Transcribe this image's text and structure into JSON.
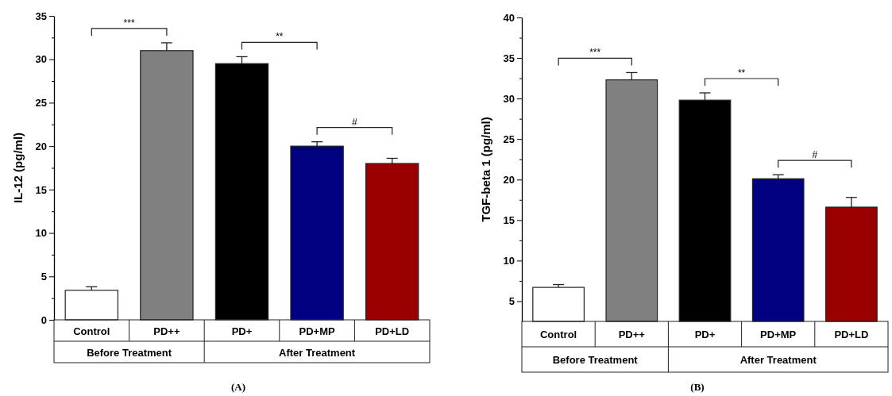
{
  "chart_data": [
    {
      "type": "bar",
      "title": "(A)",
      "ylabel": "IL-12 (pg/ml)",
      "categories": [
        "Control",
        "PD++",
        "PD+",
        "PD+MP",
        "PD+LD"
      ],
      "values": [
        3.4,
        31.0,
        29.5,
        20.0,
        18.0
      ],
      "errors": [
        0.4,
        0.9,
        0.8,
        0.5,
        0.6
      ],
      "colors": [
        "#ffffff",
        "#808080",
        "#000000",
        "#000080",
        "#990000"
      ],
      "ylim": [
        0,
        35
      ],
      "yticks": [
        0,
        {
          "value": 2.5,
          "label": null
        },
        5,
        {
          "value": 7.5,
          "label": null
        },
        10,
        {
          "value": 12.5,
          "label": null
        },
        15,
        {
          "value": 17.5,
          "label": null
        },
        20,
        {
          "value": 22.5,
          "label": null
        },
        25,
        {
          "value": 27.5,
          "label": null
        },
        30,
        {
          "value": 32.5,
          "label": null
        },
        35
      ],
      "annotations": [
        "***",
        "**",
        "#",
        "Before Treatment",
        "After Treatment"
      ]
    },
    {
      "type": "bar",
      "title": "(B)",
      "ylabel": "TGF-beta 1 (pg/ml)",
      "categories": [
        "Control",
        "PD++",
        "PD+",
        "PD+MP",
        "PD+LD"
      ],
      "values": [
        6.7,
        32.3,
        29.8,
        20.1,
        16.6
      ],
      "errors": [
        0.35,
        0.9,
        0.9,
        0.5,
        1.2
      ],
      "colors": [
        "#ffffff",
        "#808080",
        "#000000",
        "#000080",
        "#990000"
      ],
      "ylim": [
        2.5,
        40
      ],
      "yticks": [
        5,
        {
          "value": 7.5,
          "label": null
        },
        10,
        {
          "value": 12.5,
          "label": null
        },
        15,
        {
          "value": 17.5,
          "label": null
        },
        20,
        {
          "value": 22.5,
          "label": null
        },
        25,
        {
          "value": 27.5,
          "label": null
        },
        30,
        {
          "value": 32.5,
          "label": null
        },
        35,
        {
          "value": 37.5,
          "label": null
        },
        40
      ],
      "annotations": [
        "***",
        "**",
        "#",
        "Before Treatment",
        "After Treatment"
      ]
    }
  ]
}
